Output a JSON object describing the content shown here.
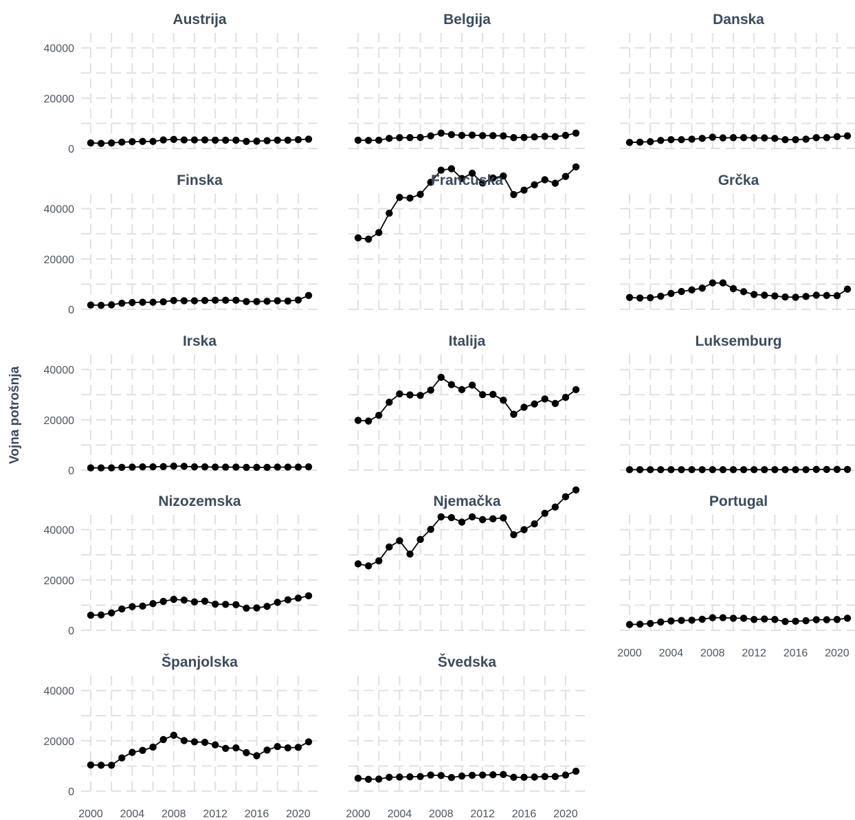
{
  "chart_data": {
    "type": "line",
    "ylabel": "Vojna potrošnja",
    "ylim": [
      0,
      50000
    ],
    "yticks": [
      0,
      20000,
      40000
    ],
    "xticks": [
      2000,
      2004,
      2008,
      2012,
      2016,
      2020
    ],
    "xlim": [
      2000,
      2021
    ],
    "grid": true,
    "legend": "none",
    "x": [
      2000,
      2001,
      2002,
      2003,
      2004,
      2005,
      2006,
      2007,
      2008,
      2009,
      2010,
      2011,
      2012,
      2013,
      2014,
      2015,
      2016,
      2017,
      2018,
      2019,
      2020,
      2021
    ],
    "panels": [
      {
        "title": "Austrija",
        "values": [
          2200,
          2000,
          2200,
          2500,
          2700,
          2800,
          2800,
          3400,
          3600,
          3400,
          3400,
          3400,
          3300,
          3300,
          3300,
          2800,
          2900,
          3100,
          3300,
          3300,
          3500,
          3700
        ]
      },
      {
        "title": "Belgija",
        "values": [
          3300,
          3200,
          3300,
          4000,
          4300,
          4300,
          4400,
          5000,
          6100,
          5500,
          5200,
          5300,
          5100,
          5100,
          5000,
          4300,
          4400,
          4600,
          4800,
          4700,
          5200,
          6100
        ]
      },
      {
        "title": "Danska",
        "values": [
          2400,
          2500,
          2700,
          3200,
          3500,
          3500,
          3700,
          4000,
          4500,
          4200,
          4300,
          4300,
          4200,
          4200,
          4000,
          3500,
          3500,
          3700,
          4300,
          4300,
          4700,
          5000
        ]
      },
      {
        "title": "Finska",
        "values": [
          1700,
          1600,
          1800,
          2400,
          2700,
          2800,
          2800,
          3000,
          3500,
          3400,
          3400,
          3500,
          3600,
          3600,
          3600,
          3100,
          3100,
          3200,
          3400,
          3300,
          3700,
          5500
        ]
      },
      {
        "title": "Francuska",
        "values": [
          28400,
          27900,
          30500,
          38200,
          44500,
          44200,
          45700,
          50500,
          55300,
          55900,
          52000,
          54100,
          50200,
          52200,
          53000,
          45600,
          47400,
          49500,
          51500,
          50100,
          52800,
          56600
        ]
      },
      {
        "title": "Grčka",
        "values": [
          4700,
          4500,
          4600,
          5200,
          6300,
          7100,
          7700,
          8400,
          10500,
          10500,
          8200,
          7000,
          5900,
          5600,
          5300,
          4900,
          4800,
          5100,
          5600,
          5500,
          5400,
          8000
        ]
      },
      {
        "title": "Irska",
        "values": [
          900,
          900,
          900,
          1100,
          1200,
          1300,
          1300,
          1400,
          1600,
          1500,
          1300,
          1300,
          1200,
          1200,
          1200,
          1100,
          1100,
          1100,
          1200,
          1200,
          1200,
          1300
        ]
      },
      {
        "title": "Italija",
        "values": [
          19800,
          19500,
          21800,
          27000,
          30300,
          29900,
          29700,
          31800,
          36900,
          34000,
          32000,
          33800,
          30000,
          30100,
          27800,
          22200,
          25000,
          26300,
          28300,
          26500,
          28900,
          32000
        ]
      },
      {
        "title": "Luksemburg",
        "values": [
          200,
          200,
          200,
          200,
          200,
          200,
          200,
          200,
          200,
          200,
          200,
          200,
          200,
          200,
          200,
          200,
          200,
          200,
          300,
          300,
          300,
          300
        ]
      },
      {
        "title": "Nizozemska",
        "values": [
          6000,
          6100,
          6900,
          8500,
          9400,
          9600,
          10600,
          11500,
          12300,
          12000,
          11300,
          11600,
          10400,
          10300,
          10200,
          8800,
          8900,
          9500,
          11100,
          12100,
          12800,
          13700
        ]
      },
      {
        "title": "Njemačka",
        "values": [
          26400,
          25600,
          27600,
          33100,
          35600,
          30300,
          36100,
          40100,
          45100,
          44800,
          43000,
          45100,
          44000,
          44300,
          44700,
          38000,
          40000,
          42300,
          46500,
          49000,
          53100,
          55800
        ]
      },
      {
        "title": "Portugal",
        "values": [
          2300,
          2400,
          2700,
          3300,
          3700,
          3900,
          4000,
          4400,
          5000,
          5000,
          4800,
          4800,
          4300,
          4500,
          4300,
          3500,
          3600,
          3800,
          4200,
          4200,
          4300,
          4800
        ]
      },
      {
        "title": "Španjolska",
        "values": [
          10400,
          10300,
          10300,
          13200,
          15400,
          16200,
          17500,
          20500,
          22200,
          20100,
          19600,
          19400,
          18400,
          17000,
          17200,
          15300,
          14100,
          16300,
          17700,
          17200,
          17400,
          19600
        ]
      },
      {
        "title": "Švedska",
        "values": [
          5100,
          4700,
          4800,
          5500,
          5600,
          5700,
          5800,
          6400,
          6200,
          5400,
          6000,
          6300,
          6400,
          6500,
          6600,
          5500,
          5500,
          5600,
          5800,
          5800,
          6400,
          7900
        ]
      }
    ]
  }
}
